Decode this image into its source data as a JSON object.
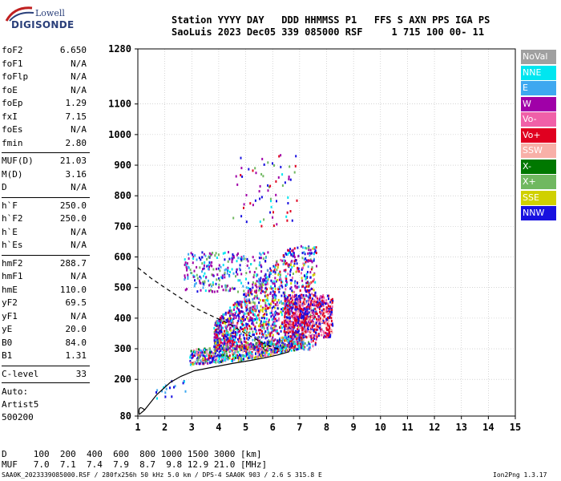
{
  "logo": {
    "top": "Lowell",
    "bottom": "DIGISONDE"
  },
  "header": {
    "line1": "Station YYYY DAY   DDD HHMMSS P1   FFS S AXN PPS IGA PS",
    "line2": "SaoLuis 2023 Dec05 339 085000 RSF     1 715 100 00- 11"
  },
  "params": [
    {
      "k": "foF2",
      "v": "6.650"
    },
    {
      "k": "foF1",
      "v": "N/A"
    },
    {
      "k": "foFlp",
      "v": "N/A"
    },
    {
      "k": "foE",
      "v": "N/A"
    },
    {
      "k": "foEp",
      "v": "1.29"
    },
    {
      "k": "fxI",
      "v": "7.15"
    },
    {
      "k": "foEs",
      "v": "N/A"
    },
    {
      "k": "fmin",
      "v": "2.80"
    },
    {
      "k": "MUF(D)",
      "v": "21.03"
    },
    {
      "k": "M(D)",
      "v": "3.16"
    },
    {
      "k": "D",
      "v": "N/A"
    },
    {
      "k": "h`F",
      "v": "250.0"
    },
    {
      "k": "h`F2",
      "v": "250.0"
    },
    {
      "k": "h`E",
      "v": "N/A"
    },
    {
      "k": "h`Es",
      "v": "N/A"
    },
    {
      "k": "hmF2",
      "v": "288.7"
    },
    {
      "k": "hmF1",
      "v": "N/A"
    },
    {
      "k": "hmE",
      "v": "110.0"
    },
    {
      "k": "yF2",
      "v": "69.5"
    },
    {
      "k": "yF1",
      "v": "N/A"
    },
    {
      "k": "yE",
      "v": "20.0"
    },
    {
      "k": "B0",
      "v": "84.0"
    },
    {
      "k": "B1",
      "v": "1.31"
    },
    {
      "k": "C-level",
      "v": "33"
    }
  ],
  "auto": {
    "line1": "Auto:",
    "line2": "Artist5",
    "line3": "500200"
  },
  "legend": [
    {
      "label": "NoVal",
      "color": "#a0a0a0"
    },
    {
      "label": "NNE",
      "color": "#00e6f0"
    },
    {
      "label": "E",
      "color": "#3ea8f0"
    },
    {
      "label": "W",
      "color": "#a000a8"
    },
    {
      "label": "Vo-",
      "color": "#f060a8"
    },
    {
      "label": "Vo+",
      "color": "#e00020"
    },
    {
      "label": "SSW",
      "color": "#f8b0a8"
    },
    {
      "label": "X-",
      "color": "#007800"
    },
    {
      "label": "X+",
      "color": "#70b860"
    },
    {
      "label": "SSE",
      "color": "#d0d000"
    },
    {
      "label": "NNW",
      "color": "#1810e0"
    }
  ],
  "footer": {
    "d_row": "D     100  200  400  600  800 1000 1500 3000 [km]",
    "muf_row": "MUF   7.0  7.1  7.4  7.9  8.7  9.8 12.9 21.0 [MHz]",
    "file_info": "SAA0K_2023339085000.RSF / 280fx256h 50 kHz 5.0 km / DPS-4 SAA0K 903 / 2.6 S 315.8 E",
    "version": "Ion2Png 1.3.17"
  },
  "chart_data": {
    "type": "scatter",
    "title": "",
    "xlabel": "",
    "ylabel": "",
    "xlim": [
      1,
      15
    ],
    "ylim": [
      80,
      1280
    ],
    "x_ticks": [
      1,
      2,
      3,
      4,
      5,
      6,
      7,
      8,
      9,
      10,
      11,
      12,
      13,
      14,
      15
    ],
    "y_ticks": [
      80,
      200,
      300,
      400,
      500,
      600,
      700,
      800,
      900,
      1000,
      1100,
      1280
    ],
    "grid": true,
    "series": [
      {
        "name": "profile",
        "style": "solid",
        "values": [
          [
            1.05,
            85
          ],
          [
            1.25,
            100
          ],
          [
            1.7,
            150
          ],
          [
            2.2,
            190
          ],
          [
            2.6,
            210
          ],
          [
            3.1,
            228
          ],
          [
            3.8,
            240
          ],
          [
            4.5,
            252
          ],
          [
            5.2,
            262
          ],
          [
            5.8,
            272
          ],
          [
            6.2,
            280
          ],
          [
            6.6,
            290
          ],
          [
            6.65,
            300
          ]
        ]
      },
      {
        "name": "topside",
        "style": "dashed",
        "values": [
          [
            1.0,
            565
          ],
          [
            1.5,
            530
          ],
          [
            2.0,
            500
          ],
          [
            2.6,
            465
          ],
          [
            3.2,
            430
          ],
          [
            3.8,
            405
          ],
          [
            4.3,
            385
          ],
          [
            4.8,
            360
          ],
          [
            5.2,
            340
          ],
          [
            5.6,
            320
          ],
          [
            6.0,
            305
          ],
          [
            6.3,
            298
          ]
        ]
      }
    ],
    "echo_clusters": [
      {
        "name": "F2 trace",
        "x": [
          2.9,
          7.2
        ],
        "y": [
          245,
          330
        ]
      },
      {
        "name": "F2 spread",
        "x": [
          3.8,
          7.6
        ],
        "y": [
          300,
          640
        ]
      },
      {
        "name": "F2 high",
        "x": [
          6.4,
          8.2
        ],
        "y": [
          340,
          480
        ]
      },
      {
        "name": "multi-hop",
        "x": [
          2.7,
          5.8
        ],
        "y": [
          490,
          620
        ]
      },
      {
        "name": "sparse high",
        "x": [
          4.5,
          6.9
        ],
        "y": [
          700,
          950
        ]
      },
      {
        "name": "low echoes",
        "x": [
          1.6,
          2.8
        ],
        "y": [
          140,
          200
        ]
      }
    ]
  }
}
